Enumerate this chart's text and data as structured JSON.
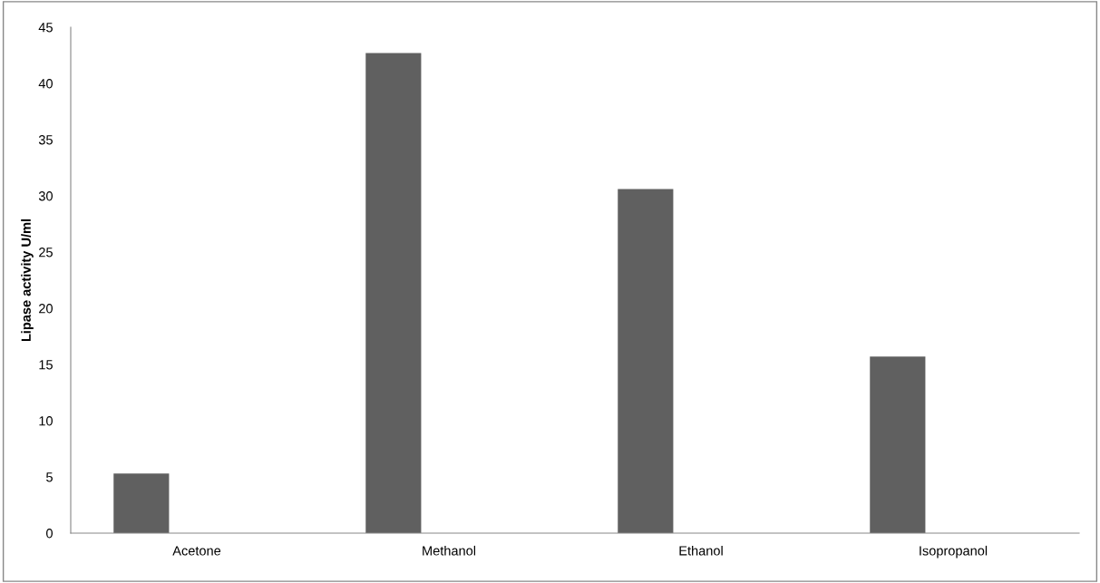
{
  "chart_data": {
    "type": "bar",
    "ylabel": "Lipase activity U/ml",
    "categories": [
      "Acetone",
      "Methanol",
      "Ethanol",
      "Isopropanol"
    ],
    "values": [
      5.3,
      42.7,
      30.6,
      15.7
    ],
    "color": "#606060",
    "ylim": [
      0,
      45
    ],
    "yticks": [
      0,
      5,
      10,
      15,
      20,
      25,
      30,
      35,
      40,
      45
    ],
    "grid": false,
    "legend": false
  }
}
